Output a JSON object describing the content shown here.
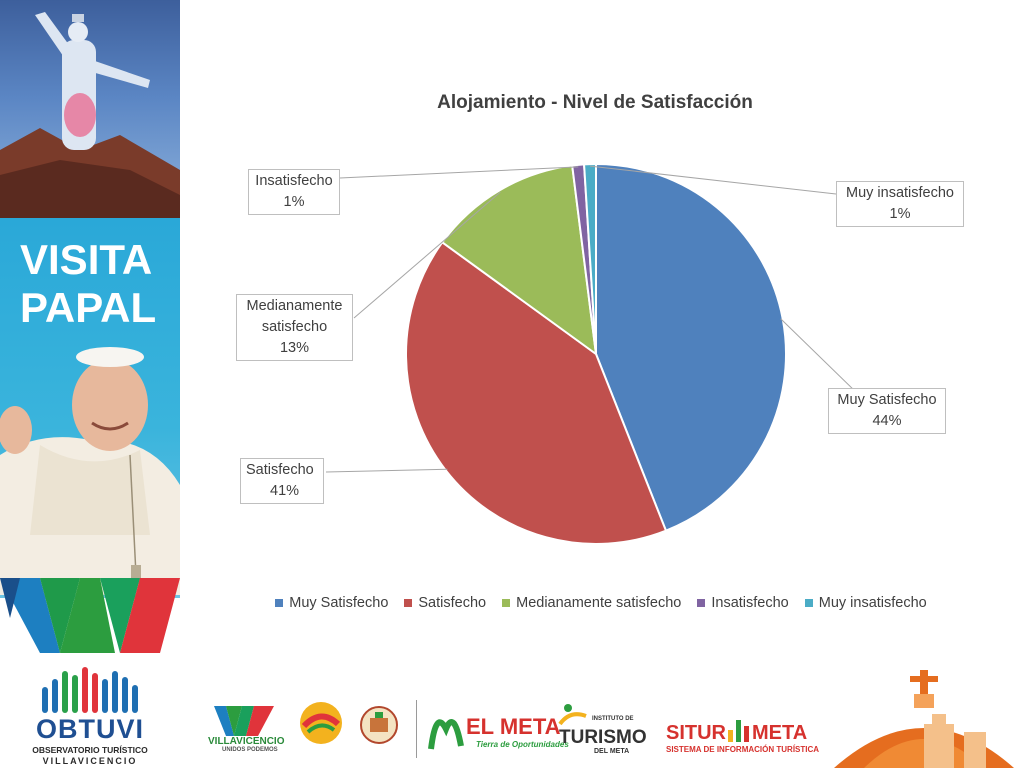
{
  "banner": {
    "headline_line1": "VISITA",
    "headline_line2": "PAPAL",
    "org_name": "OBTUVI",
    "org_sub1": "OBSERVATORIO TURÍSTICO",
    "org_sub2": "VILLAVICENCIO"
  },
  "logos": {
    "villavicencio": "VILLAVICENCIO",
    "villavicencio_tag": "UNIDOS PODEMOS",
    "el_meta": "EL META",
    "el_meta_tag": "Tierra de Oportunidades",
    "turismo_top": "INSTITUTO DE",
    "turismo": "TURISMO",
    "turismo_bottom": "DEL META",
    "situr_a": "SITUR",
    "situr_b": "META",
    "situr_tag": "SISTEMA DE INFORMACIÓN TURÍSTICA"
  },
  "colors": {
    "muy_satisfecho": "#4f81bd",
    "satisfecho": "#c0504d",
    "medianamente": "#9bbb59",
    "insatisfecho": "#8064a2",
    "muy_insatisfecho": "#4bacc6"
  },
  "chart_data": {
    "type": "pie",
    "title": "Alojamiento - Nivel de Satisfacción",
    "legend_position": "bottom",
    "slices": [
      {
        "name": "Muy Satisfecho",
        "value": 44,
        "label": "44%"
      },
      {
        "name": "Satisfecho",
        "value": 41,
        "label": "41%"
      },
      {
        "name": "Medianamente satisfecho",
        "value": 13,
        "label": "13%"
      },
      {
        "name": "Insatisfecho",
        "value": 1,
        "label": "1%"
      },
      {
        "name": "Muy insatisfecho",
        "value": 1,
        "label": "1%"
      }
    ],
    "callout_texts": [
      [
        "Muy Satisfecho",
        "44%"
      ],
      [
        "Satisfecho",
        "41%"
      ],
      [
        "Medianamente",
        "satisfecho",
        "13%"
      ],
      [
        "Insatisfecho",
        "1%"
      ],
      [
        "Muy insatisfecho",
        "1%"
      ]
    ]
  }
}
